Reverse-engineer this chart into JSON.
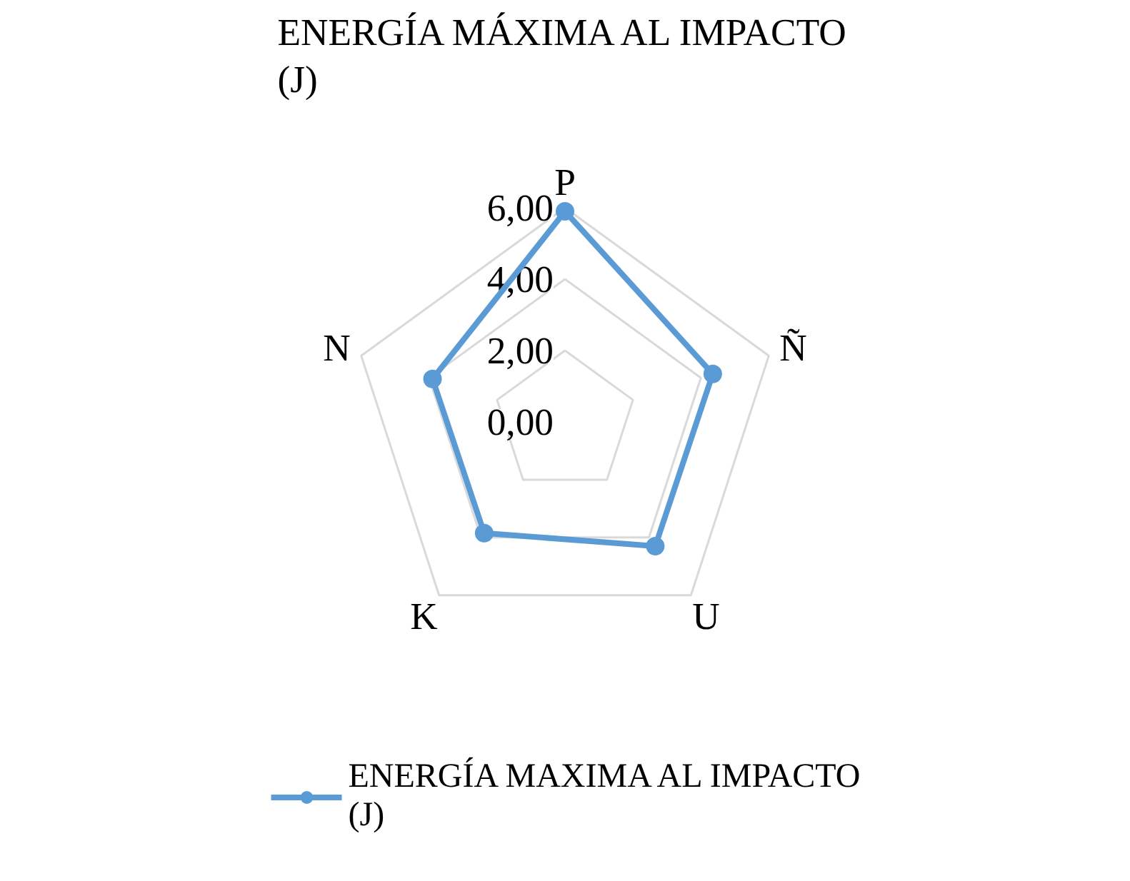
{
  "chart_data": {
    "type": "radar",
    "title": "ENERGÍA MÁXIMA AL IMPACTO\n(J)",
    "categories": [
      "P",
      "Ñ",
      "U",
      "K",
      "N"
    ],
    "series": [
      {
        "name": "ENERGÍA MAXIMA AL IMPACTO\n(J)",
        "color": "#5b9bd5",
        "values": [
          5.9,
          4.35,
          4.3,
          3.85,
          3.9
        ]
      }
    ],
    "ylim": [
      0,
      6
    ],
    "yticks": [
      {
        "value": 0,
        "label": "0,00"
      },
      {
        "value": 2,
        "label": "2,00"
      },
      {
        "value": 4,
        "label": "4,00"
      },
      {
        "value": 6,
        "label": "6,00"
      }
    ],
    "marker": "circle",
    "legend": "bottom",
    "grid": true
  }
}
